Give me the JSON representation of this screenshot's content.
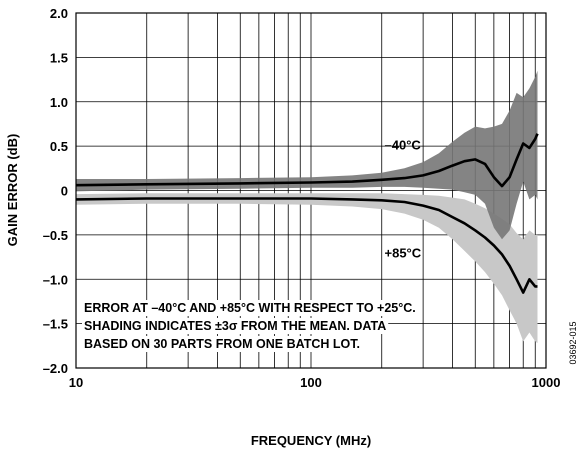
{
  "chart_data": {
    "type": "line",
    "xlabel": "FREQUENCY (MHz)",
    "ylabel": "GAIN ERROR (dB)",
    "x_scale": "log",
    "xlim": [
      10,
      1000
    ],
    "ylim": [
      -2.0,
      2.0
    ],
    "grid": true,
    "x_ticks": [
      {
        "value": 10,
        "label": "10"
      },
      {
        "value": 100,
        "label": "100"
      },
      {
        "value": 1000,
        "label": "1000"
      }
    ],
    "y_ticks": [
      {
        "value": 2.0,
        "label": "2.0"
      },
      {
        "value": 1.5,
        "label": "1.5"
      },
      {
        "value": 1.0,
        "label": "1.0"
      },
      {
        "value": 0.5,
        "label": "0.5"
      },
      {
        "value": 0,
        "label": "0"
      },
      {
        "value": -0.5,
        "label": "–0.5"
      },
      {
        "value": -1.0,
        "label": "–1.0"
      },
      {
        "value": -1.5,
        "label": "–1.5"
      },
      {
        "value": -2.0,
        "label": "–2.0"
      }
    ],
    "series": [
      {
        "name": "–40°C",
        "color": "#000000",
        "band_color": "#777777",
        "x": [
          10,
          20,
          50,
          100,
          150,
          200,
          250,
          300,
          350,
          400,
          450,
          500,
          550,
          600,
          650,
          700,
          750,
          800,
          850,
          900,
          920
        ],
        "y": [
          0.06,
          0.07,
          0.08,
          0.09,
          0.1,
          0.12,
          0.14,
          0.17,
          0.22,
          0.28,
          0.33,
          0.35,
          0.3,
          0.15,
          0.05,
          0.15,
          0.35,
          0.53,
          0.48,
          0.58,
          0.64
        ],
        "upper": [
          0.13,
          0.13,
          0.14,
          0.15,
          0.17,
          0.2,
          0.25,
          0.32,
          0.42,
          0.55,
          0.65,
          0.72,
          0.7,
          0.72,
          0.75,
          0.9,
          1.1,
          1.05,
          1.15,
          1.28,
          1.35
        ],
        "lower": [
          -0.01,
          0.01,
          0.02,
          0.03,
          0.03,
          0.04,
          0.04,
          0.03,
          0.02,
          0.01,
          -0.02,
          -0.05,
          -0.15,
          -0.42,
          -0.55,
          -0.45,
          -0.15,
          0.1,
          -0.1,
          -0.05,
          -0.1
        ]
      },
      {
        "name": "+85°C",
        "color": "#000000",
        "band_color": "#c8c8c8",
        "x": [
          10,
          20,
          50,
          100,
          150,
          200,
          250,
          300,
          350,
          400,
          450,
          500,
          550,
          600,
          650,
          700,
          750,
          800,
          850,
          900,
          920
        ],
        "y": [
          -0.1,
          -0.09,
          -0.09,
          -0.09,
          -0.1,
          -0.11,
          -0.13,
          -0.17,
          -0.22,
          -0.3,
          -0.37,
          -0.45,
          -0.53,
          -0.62,
          -0.72,
          -0.85,
          -1.0,
          -1.15,
          -1.0,
          -1.08,
          -1.08
        ],
        "upper": [
          -0.04,
          -0.03,
          -0.03,
          -0.03,
          -0.03,
          -0.03,
          -0.04,
          -0.05,
          -0.06,
          -0.08,
          -0.1,
          -0.15,
          -0.2,
          -0.26,
          -0.32,
          -0.38,
          -0.48,
          -0.55,
          -0.45,
          -0.5,
          -0.5
        ],
        "lower": [
          -0.16,
          -0.15,
          -0.15,
          -0.16,
          -0.18,
          -0.21,
          -0.26,
          -0.33,
          -0.42,
          -0.55,
          -0.68,
          -0.8,
          -0.92,
          -1.05,
          -1.18,
          -1.35,
          -1.5,
          -1.7,
          -1.6,
          -1.7,
          -1.72
        ]
      }
    ],
    "annotations": [
      {
        "text": "–40°C",
        "x": 450,
        "y": 0.52
      },
      {
        "text": "+85°C",
        "x": 450,
        "y": -0.7
      }
    ],
    "note_lines": [
      "ERROR AT –40°C AND +85°C WITH RESPECT TO +25°C.",
      "SHADING INDICATES ±3σ FROM THE MEAN. DATA",
      "BASED ON 30 PARTS FROM ONE BATCH LOT."
    ],
    "figure_id": "03692-015"
  }
}
